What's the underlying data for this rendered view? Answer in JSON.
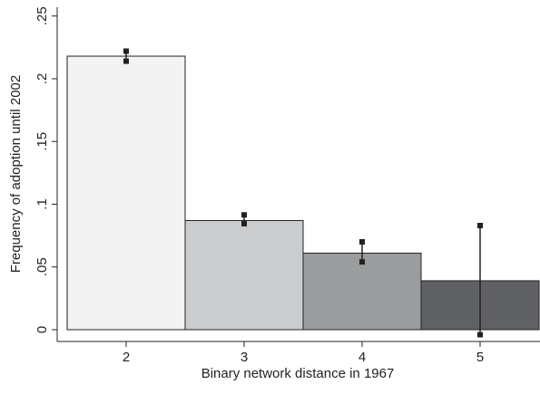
{
  "chart_data": {
    "type": "bar",
    "x_label": "Binary network distance in 1967",
    "y_label": "Frequency of adoption until 2002",
    "categories": [
      "2",
      "3",
      "4",
      "5"
    ],
    "values": [
      0.218,
      0.087,
      0.061,
      0.039
    ],
    "ci_low": [
      0.214,
      0.0845,
      0.054,
      -0.004
    ],
    "ci_high": [
      0.222,
      0.0915,
      0.07,
      0.083
    ],
    "colors": [
      "#f2f3f2",
      "#cbcccd",
      "#9b9c9e",
      "#606164"
    ],
    "ylim": [
      -0.0094,
      0.257
    ],
    "yticks": [
      0,
      {
        "value": 0.05,
        "label": ".05"
      },
      {
        "value": 0.1,
        "label": ".1"
      },
      {
        "value": 0.15,
        "label": ".15"
      },
      {
        "value": 0.2,
        "label": ".2"
      },
      {
        "value": 0.25,
        "label": ".25"
      }
    ]
  }
}
